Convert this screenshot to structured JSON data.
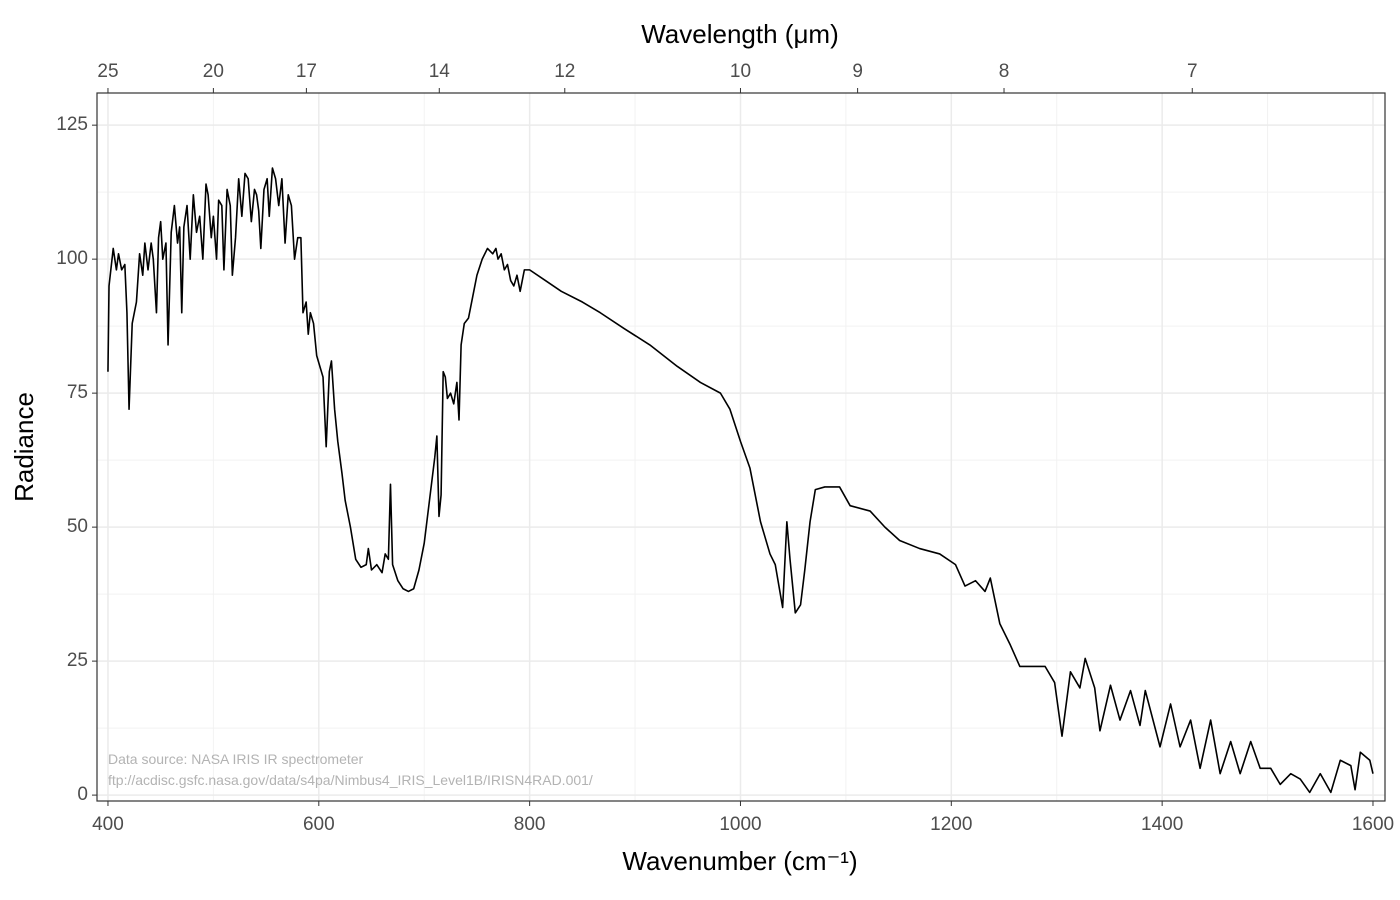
{
  "chart_data": {
    "type": "line",
    "x_label": "Wavenumber (cm⁻¹)",
    "y_label": "Radiance",
    "x2_label": "Wavelength (μm)",
    "annotations": [
      "Data source: NASA IRIS IR spectrometer",
      "ftp://acdisc.gsfc.nasa.gov/data/s4pa/Nimbus4_IRIS_Level1B/IRISN4RAD.001/"
    ],
    "color": "#000000",
    "grid": true,
    "xlim": [
      389.6,
      1611.4
    ],
    "ylim": [
      -1.1,
      131
    ],
    "xticks": [
      400,
      600,
      800,
      1000,
      1200,
      1400,
      1600
    ],
    "yticks": [
      0,
      25,
      50,
      75,
      100,
      125
    ],
    "x2ticks": [
      25,
      20,
      17,
      14,
      12,
      10,
      9,
      8,
      7
    ],
    "x": [
      400,
      401,
      405,
      408,
      410,
      413,
      416,
      418,
      420,
      423,
      427,
      430,
      433,
      435,
      438,
      441,
      443,
      446,
      448,
      450,
      452,
      455,
      457,
      460,
      463,
      466,
      468,
      470,
      472,
      475,
      478,
      481,
      484,
      487,
      490,
      493,
      495,
      498,
      500,
      503,
      505,
      508,
      510,
      513,
      516,
      518,
      521,
      524,
      527,
      530,
      533,
      536,
      539,
      541,
      543,
      545,
      548,
      551,
      553,
      556,
      559,
      562,
      565,
      568,
      571,
      574,
      577,
      580,
      583,
      585,
      588,
      590,
      592,
      595,
      598,
      601,
      604,
      607,
      610,
      612,
      615,
      618,
      622,
      625,
      630,
      635,
      640,
      645,
      647,
      650,
      655,
      660,
      663,
      666,
      668,
      670,
      675,
      680,
      685,
      690,
      695,
      700,
      705,
      710,
      712,
      714,
      716,
      718,
      720,
      722,
      725,
      728,
      731,
      733,
      735,
      738,
      742,
      746,
      750,
      755,
      760,
      765,
      768,
      770,
      773,
      776,
      779,
      782,
      785,
      788,
      791,
      795,
      800,
      815,
      830,
      850,
      867,
      890,
      914,
      940,
      962,
      981,
      990,
      1000,
      1009,
      1019,
      1028,
      1033,
      1040,
      1044,
      1047,
      1052,
      1057,
      1061,
      1066,
      1071,
      1080,
      1094,
      1104,
      1123,
      1137,
      1151,
      1170,
      1189,
      1204,
      1213,
      1223,
      1232,
      1237,
      1246,
      1256,
      1265,
      1275,
      1289,
      1298,
      1305,
      1313,
      1322,
      1327,
      1336,
      1341,
      1351,
      1360,
      1370,
      1379,
      1384,
      1398,
      1408,
      1417,
      1427,
      1436,
      1446,
      1455,
      1465,
      1474,
      1484,
      1493,
      1503,
      1512,
      1522,
      1531,
      1540,
      1550,
      1560,
      1569,
      1579,
      1583,
      1588,
      1597,
      1600
    ],
    "values": [
      79,
      95,
      102,
      98,
      101,
      98,
      99,
      90,
      72,
      88,
      92,
      101,
      97,
      103,
      98,
      103,
      100,
      90,
      104,
      107,
      100,
      103,
      84,
      105,
      110,
      103,
      106,
      90,
      106,
      110,
      100,
      112,
      105,
      108,
      100,
      114,
      112,
      104,
      108,
      100,
      111,
      110,
      98,
      113,
      110,
      97,
      104,
      115,
      108,
      116,
      115,
      107,
      113,
      112,
      109,
      102,
      113,
      115,
      108,
      117,
      115,
      110,
      115,
      103,
      112,
      110,
      100,
      104,
      104,
      90,
      92,
      86,
      90,
      88,
      82,
      80,
      78,
      65,
      79,
      81,
      72,
      66,
      60,
      55,
      50,
      44,
      42.5,
      43,
      46,
      42,
      43,
      41.5,
      45,
      44,
      58,
      43,
      40,
      38.5,
      38,
      38.5,
      42,
      47,
      55,
      63,
      67,
      52,
      56,
      79,
      78,
      74,
      75,
      73,
      77,
      70,
      84,
      88,
      89,
      93,
      97,
      100,
      102,
      101,
      102,
      100,
      101,
      98,
      99,
      96,
      95,
      97,
      94,
      98,
      98,
      96,
      94,
      92,
      90,
      87,
      84,
      80,
      77,
      75,
      72,
      66,
      61,
      51,
      45,
      43,
      35,
      51,
      44,
      34,
      35.5,
      42,
      51,
      57,
      57.5,
      57.5,
      54,
      53,
      50,
      47.5,
      46,
      45,
      43,
      39,
      40,
      38,
      40.5,
      32,
      28,
      24,
      24,
      24,
      21,
      11,
      23,
      20,
      25.5,
      20,
      12,
      20.5,
      14,
      19.5,
      13,
      19.5,
      9,
      17,
      9,
      14,
      5,
      14,
      4,
      10,
      4,
      10,
      5,
      5,
      2,
      4,
      3,
      0.5,
      4,
      0.5,
      6.5,
      5.5,
      1,
      8,
      6.5,
      4
    ]
  }
}
